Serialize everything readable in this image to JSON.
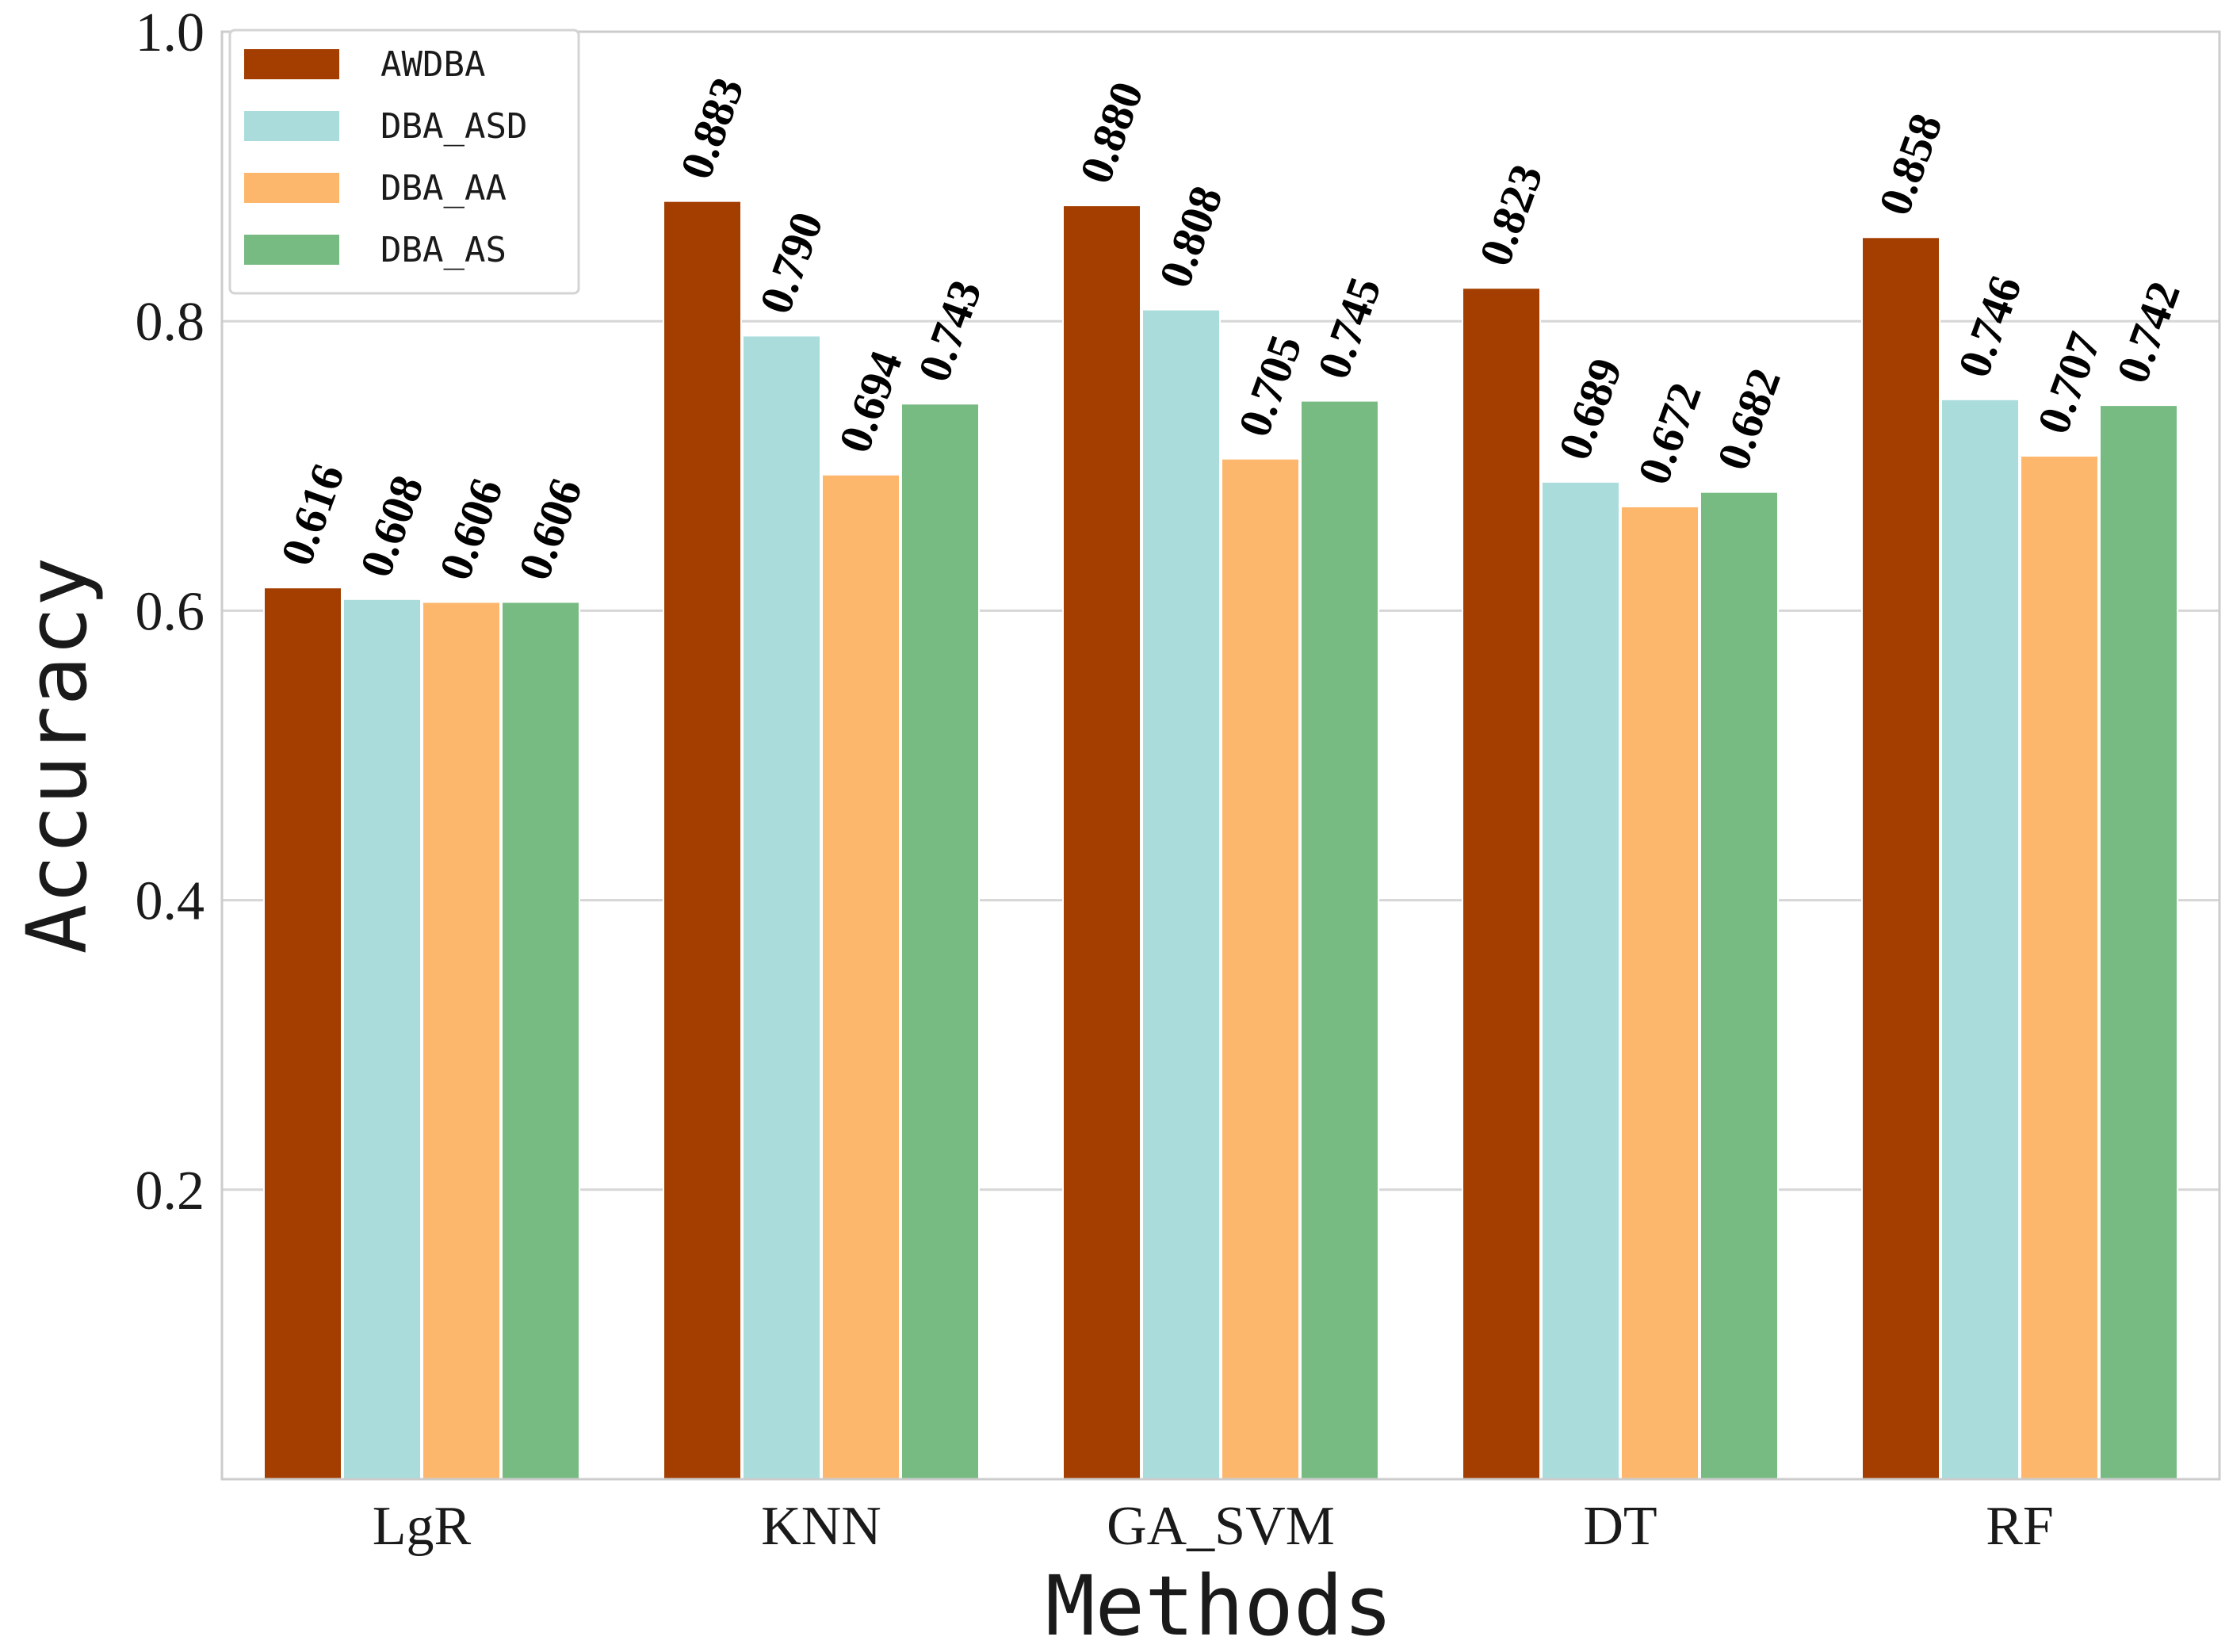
{
  "chart_data": {
    "type": "bar",
    "title": "",
    "xlabel": "Methods",
    "ylabel": "Accuracy",
    "ylim": [
      0,
      1.0
    ],
    "yticks": [
      "0.2",
      "0.4",
      "0.6",
      "0.8",
      "1.0"
    ],
    "grid": true,
    "legend_position": "top-left",
    "categories": [
      "LgR",
      "KNN",
      "GA_SVM",
      "DT",
      "RF"
    ],
    "series": [
      {
        "name": "AWDBA",
        "color": "#a33e00",
        "values": [
          0.616,
          0.883,
          0.88,
          0.823,
          0.858
        ],
        "labels": [
          "0.616",
          "0.883",
          "0.880",
          "0.823",
          "0.858"
        ]
      },
      {
        "name": "DBA_ASD",
        "color": "#aadcdc",
        "values": [
          0.608,
          0.79,
          0.808,
          0.689,
          0.746
        ],
        "labels": [
          "0.608",
          "0.790",
          "0.808",
          "0.689",
          "0.746"
        ]
      },
      {
        "name": "DBA_AA",
        "color": "#fdb76d",
        "values": [
          0.606,
          0.694,
          0.705,
          0.672,
          0.707
        ],
        "labels": [
          "0.606",
          "0.694",
          "0.705",
          "0.672",
          "0.707"
        ]
      },
      {
        "name": "DBA_AS",
        "color": "#78bb82",
        "values": [
          0.606,
          0.743,
          0.745,
          0.682,
          0.742
        ],
        "labels": [
          "0.606",
          "0.743",
          "0.745",
          "0.682",
          "0.742"
        ]
      }
    ]
  }
}
